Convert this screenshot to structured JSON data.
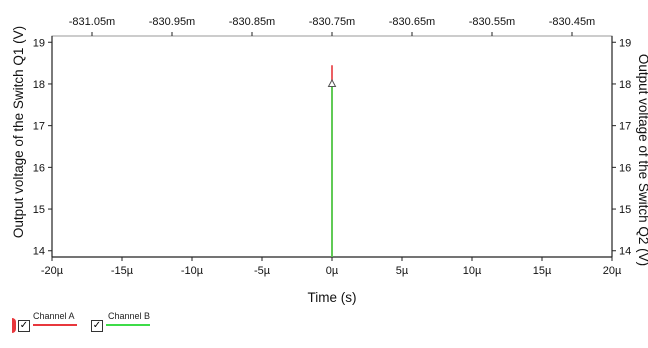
{
  "chart_data": {
    "type": "line",
    "xlabel": "Time (s)",
    "ylabel_left": "Output voltage of the Switch Q1 (V)",
    "ylabel_right": "Output voltage of the Switch Q2 (V)",
    "xlim": [
      -20,
      20
    ],
    "x_unit": "µ",
    "x_ticks": [
      "-20µ",
      "-15µ",
      "-10µ",
      "-5µ",
      "0µ",
      "5µ",
      "10µ",
      "15µ",
      "20µ"
    ],
    "top_xlim": [
      -831.1,
      -830.4
    ],
    "top_ticks": [
      "-831.05m",
      "-830.95m",
      "-830.85m",
      "-830.75m",
      "-830.65m",
      "-830.55m",
      "-830.45m"
    ],
    "ylim": [
      13.85,
      19.15
    ],
    "y_ticks": [
      "14",
      "15",
      "16",
      "17",
      "18",
      "19"
    ],
    "grid": false,
    "legend_position": "bottom-left",
    "series": [
      {
        "name": "Channel A",
        "color": "#e8373c",
        "x": [
          0,
          0
        ],
        "y": [
          13.85,
          18.45
        ]
      },
      {
        "name": "Channel B",
        "color": "#3ddc48",
        "x": [
          0,
          0
        ],
        "y": [
          13.85,
          18.0
        ]
      }
    ],
    "annotations": [
      {
        "marker": "triangle",
        "x": 0,
        "y": 18.0
      }
    ]
  },
  "legend": {
    "items": [
      {
        "name": "Channel A",
        "checked": true,
        "checkmark": "✓",
        "color": "#e8373c"
      },
      {
        "name": "Channel B",
        "checked": true,
        "checkmark": "✓",
        "color": "#3ddc48"
      }
    ]
  },
  "colors": {
    "axis": "#222222",
    "frame": "#9a9a9a",
    "background": "#ffffff"
  }
}
